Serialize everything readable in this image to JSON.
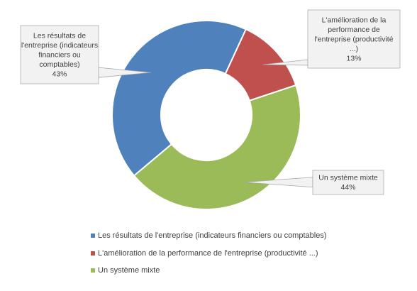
{
  "chart_data": {
    "type": "pie",
    "variant": "doughnut",
    "title": "",
    "legend_position": "bottom",
    "series": [
      {
        "name": "Les résultats de l'entreprise (indicateurs financiers ou comptables)",
        "value": 43,
        "value_label": "43%",
        "callout_lines": [
          "Les résultats de",
          "l'entreprise (indicateurs",
          "financiers ou",
          "comptables)"
        ],
        "color": "#4f81bd"
      },
      {
        "name": "L'amélioration de la performance de l'entreprise (productivité ...)",
        "value": 13,
        "value_label": "13%",
        "callout_lines": [
          "L'amélioration de la",
          "performance de",
          "l'entreprise (productivité",
          "...)"
        ],
        "color": "#c0504d"
      },
      {
        "name": "Un système mixte",
        "value": 44,
        "value_label": "44%",
        "callout_lines": [
          "Un système mixte"
        ],
        "color": "#9bbb59"
      }
    ]
  }
}
